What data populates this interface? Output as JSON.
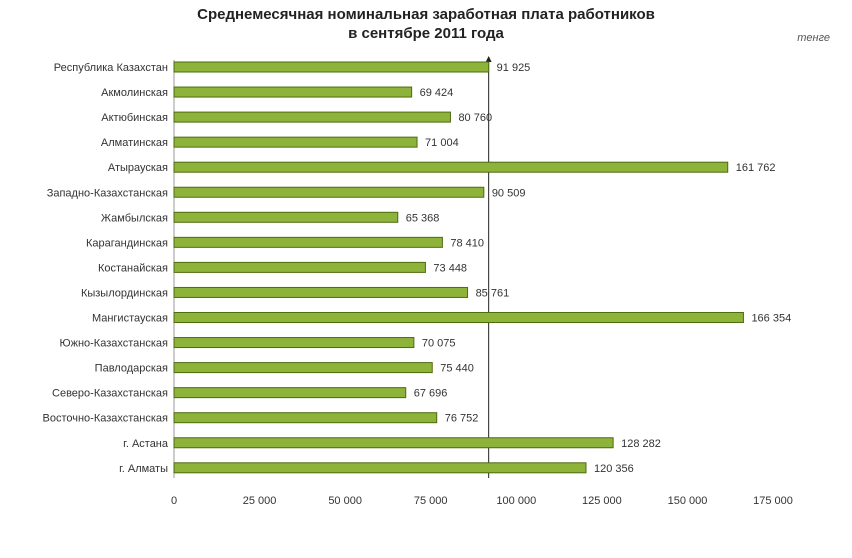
{
  "chart_data": {
    "type": "bar",
    "orientation": "horizontal",
    "title": "Среднемесячная номинальная заработная плата работников",
    "subtitle": "в сентябре 2011 года",
    "unit": "тенге",
    "categories": [
      "Республика Казахстан",
      "Акмолинская",
      "Актюбинская",
      "Алматинская",
      "Атырауская",
      "Западно-Казахстанская",
      "Жамбылская",
      "Карагандинская",
      "Костанайская",
      "Кызылординская",
      "Мангистауская",
      "Южно-Казахстанская",
      "Павлодарская",
      "Северо-Казахстанская",
      "Восточно-Казахстанская",
      "г. Астана",
      "г. Алматы"
    ],
    "values": [
      91925,
      69424,
      80760,
      71004,
      161762,
      90509,
      65368,
      78410,
      73448,
      85761,
      166354,
      70075,
      75440,
      67696,
      76752,
      128282,
      120356
    ],
    "value_labels": [
      "91 925",
      "69 424",
      "80 760",
      "71 004",
      "161 762",
      "90 509",
      "65 368",
      "78 410",
      "73 448",
      "85 761",
      "166 354",
      "70 075",
      "75 440",
      "67 696",
      "76 752",
      "128 282",
      "120 356"
    ],
    "x_ticks": [
      0,
      25000,
      50000,
      75000,
      100000,
      125000,
      150000,
      175000
    ],
    "x_tick_labels": [
      "0",
      "25 000",
      "50 000",
      "75 000",
      "100 000",
      "125 000",
      "150 000",
      "175 000"
    ],
    "xlim": [
      0,
      182000
    ],
    "reference_value": 91925,
    "grid": false,
    "legend": "none",
    "bar_color": "#8db33a",
    "bar_edge_color": "#4e6b10"
  }
}
